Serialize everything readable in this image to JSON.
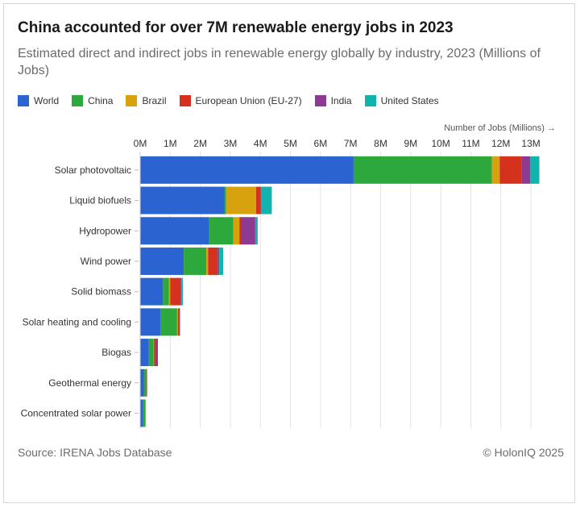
{
  "header": {
    "title": "China accounted for over 7M renewable energy jobs in 2023",
    "subtitle": "Estimated direct and indirect jobs in renewable energy globally by industry, 2023 (Millions of Jobs)"
  },
  "footer": {
    "source": "Source: IRENA Jobs Database",
    "credit": "© HolonIQ 2025"
  },
  "colors": {
    "World": "#2b63d1",
    "China": "#2ca83c",
    "Brazil": "#d8a20e",
    "European Union (EU-27)": "#d4321c",
    "India": "#8e3a92",
    "United States": "#13b3ad"
  },
  "chart_data": {
    "type": "bar",
    "orientation": "horizontal",
    "stacked": true,
    "title": "China accounted for over 7M renewable energy jobs in 2023",
    "subtitle": "Estimated direct and indirect jobs in renewable energy globally by industry, 2023 (Millions of Jobs)",
    "xlabel": "Number of Jobs (Millions) →",
    "ylabel": "",
    "xlim": [
      0,
      13.4
    ],
    "xticks": [
      0,
      1,
      2,
      3,
      4,
      5,
      6,
      7,
      8,
      9,
      10,
      11,
      12,
      13
    ],
    "xtick_labels": [
      "0M",
      "1M",
      "2M",
      "3M",
      "4M",
      "5M",
      "6M",
      "7M",
      "8M",
      "9M",
      "10M",
      "11M",
      "12M",
      "13M"
    ],
    "grid": true,
    "legend_position": "top-left",
    "categories": [
      "Solar photovoltaic",
      "Liquid biofuels",
      "Hydropower",
      "Wind power",
      "Solid biomass",
      "Solar heating and cooling",
      "Biogas",
      "Geothermal energy",
      "Concentrated solar power"
    ],
    "series": [
      {
        "name": "World",
        "values": [
          7.1,
          2.8,
          2.3,
          1.45,
          0.76,
          0.68,
          0.29,
          0.12,
          0.08
        ]
      },
      {
        "name": "China",
        "values": [
          4.6,
          0.06,
          0.8,
          0.75,
          0.2,
          0.55,
          0.16,
          0.1,
          0.1
        ]
      },
      {
        "name": "Brazil",
        "values": [
          0.26,
          1.0,
          0.2,
          0.06,
          0.04,
          0.03,
          0.01,
          0.0,
          0.0
        ]
      },
      {
        "name": "European Union (EU-27)",
        "values": [
          0.72,
          0.14,
          0.05,
          0.32,
          0.35,
          0.04,
          0.05,
          0.01,
          0.0
        ]
      },
      {
        "name": "India",
        "values": [
          0.3,
          0.03,
          0.48,
          0.05,
          0.02,
          0.01,
          0.08,
          0.0,
          0.0
        ]
      },
      {
        "name": "United States",
        "values": [
          0.3,
          0.35,
          0.08,
          0.13,
          0.05,
          0.02,
          0.0,
          0.0,
          0.0
        ]
      }
    ]
  }
}
